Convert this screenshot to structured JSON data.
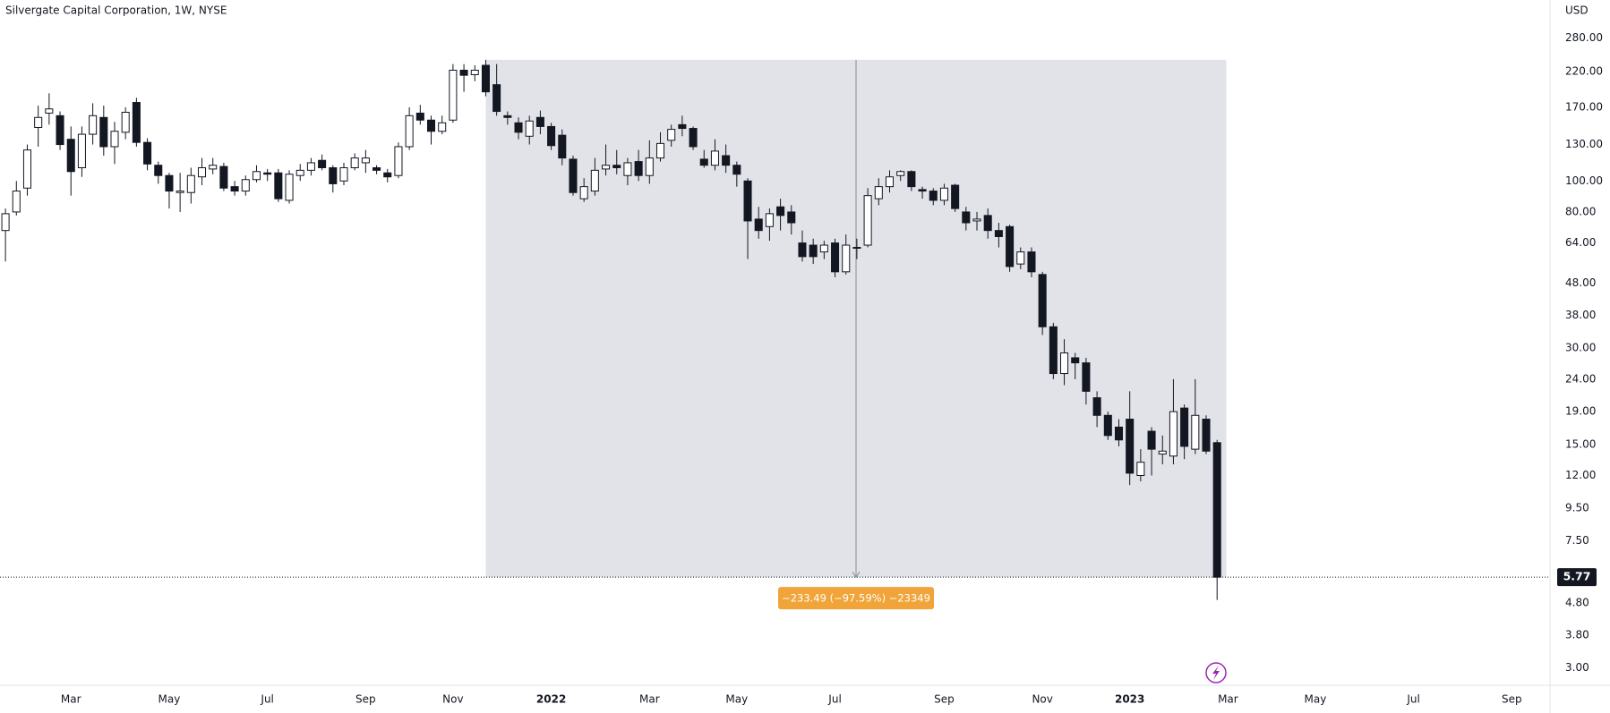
{
  "chart_data": {
    "type": "candlestick",
    "title": "Silvergate Capital Corporation, 1W, NYSE",
    "currency": "USD",
    "log_scale": true,
    "grid": false,
    "up_color": "#ffffff",
    "down_color": "#131722",
    "ylim": [
      2.65,
      368
    ],
    "yticks": [
      {
        "value": 280,
        "label": "280.00"
      },
      {
        "value": 220,
        "label": "220.00"
      },
      {
        "value": 170,
        "label": "170.00"
      },
      {
        "value": 130,
        "label": "130.00"
      },
      {
        "value": 100,
        "label": "100.00"
      },
      {
        "value": 80,
        "label": "80.00"
      },
      {
        "value": 64,
        "label": "64.00"
      },
      {
        "value": 48,
        "label": "48.00"
      },
      {
        "value": 38,
        "label": "38.00"
      },
      {
        "value": 30,
        "label": "30.00"
      },
      {
        "value": 24,
        "label": "24.00"
      },
      {
        "value": 19,
        "label": "19.00"
      },
      {
        "value": 15,
        "label": "15.00"
      },
      {
        "value": 12,
        "label": "12.00"
      },
      {
        "value": 9.5,
        "label": "9.50"
      },
      {
        "value": 7.5,
        "label": "7.50"
      },
      {
        "value": 4.8,
        "label": "4.80"
      },
      {
        "value": 3.8,
        "label": "3.80"
      },
      {
        "value": 3,
        "label": "3.00"
      }
    ],
    "categories": [
      null,
      null,
      null,
      null,
      null,
      null,
      "Mar",
      null,
      null,
      null,
      null,
      null,
      null,
      null,
      null,
      "May",
      null,
      null,
      null,
      null,
      null,
      null,
      null,
      null,
      "Jul",
      null,
      null,
      null,
      null,
      null,
      null,
      null,
      null,
      "Sep",
      null,
      null,
      null,
      null,
      null,
      null,
      null,
      "Nov",
      null,
      null,
      null,
      null,
      null,
      null,
      null,
      null,
      "2022",
      null,
      null,
      null,
      null,
      null,
      null,
      null,
      null,
      "Mar",
      null,
      null,
      null,
      null,
      null,
      null,
      null,
      "May",
      null,
      null,
      null,
      null,
      null,
      null,
      null,
      null,
      "Jul",
      null,
      null,
      null,
      null,
      null,
      null,
      null,
      null,
      null,
      "Sep",
      null,
      null,
      null,
      null,
      null,
      null,
      null,
      null,
      "Nov",
      null,
      null,
      null,
      null,
      null,
      null,
      null,
      "2023",
      null,
      null,
      null,
      null,
      null,
      null,
      null,
      null,
      "Mar",
      null,
      null,
      null,
      null,
      null,
      null,
      null,
      "May",
      null,
      null,
      null,
      null,
      null,
      null,
      null,
      null,
      "Jul",
      null,
      null,
      null,
      null,
      null,
      null,
      null,
      null,
      "Sep",
      null,
      null,
      null
    ],
    "open": [
      70,
      80,
      95,
      147,
      163,
      160,
      135,
      110,
      140,
      158,
      128,
      142,
      176,
      132,
      112,
      104,
      92,
      92,
      103,
      109,
      111,
      96,
      93,
      101,
      106,
      106,
      87,
      104,
      108,
      116,
      110,
      100,
      110,
      114,
      110,
      106,
      104,
      128,
      163,
      155,
      143,
      155,
      222,
      215,
      230,
      200,
      160,
      152,
      138,
      158,
      148,
      139,
      117,
      88,
      93,
      109,
      112,
      104,
      115,
      104,
      118,
      134,
      150,
      146,
      117,
      112,
      120,
      112,
      100,
      76,
      72,
      83,
      80,
      64,
      63,
      60,
      64,
      52,
      62,
      63,
      88,
      96,
      104,
      107,
      94,
      93,
      87,
      97,
      80,
      75,
      78,
      70,
      72,
      55,
      60,
      51,
      35,
      25,
      28,
      27,
      21,
      18.5,
      17,
      18,
      12,
      16.5,
      14,
      13.8,
      19.5,
      14.5,
      18,
      15.2,
      null,
      null,
      null,
      null,
      null,
      null,
      null,
      null,
      null,
      null,
      null,
      null,
      null,
      null,
      null,
      null,
      null,
      null,
      null,
      null,
      null,
      null,
      null,
      null,
      null,
      null,
      null,
      null,
      null,
      null
    ],
    "high": [
      82,
      100,
      130,
      172,
      188,
      165,
      148,
      148,
      175,
      172,
      153,
      170,
      182,
      136,
      115,
      106,
      106,
      110,
      118,
      118,
      114,
      100,
      104,
      112,
      109,
      109,
      108,
      113,
      118,
      121,
      112,
      114,
      122,
      125,
      112,
      109,
      132,
      170,
      173,
      160,
      160,
      232,
      232,
      230,
      239.26,
      232,
      165,
      158,
      160,
      166,
      152,
      145,
      120,
      102,
      118,
      130,
      125,
      118,
      125,
      134,
      142,
      150,
      160,
      148,
      125,
      135,
      130,
      115,
      102,
      83,
      82,
      88,
      84,
      70,
      66,
      65,
      66,
      68,
      66,
      95,
      102,
      108,
      108,
      108,
      96,
      95,
      98,
      98,
      83,
      80,
      82,
      74,
      73,
      62,
      62,
      52,
      36,
      32,
      29,
      28,
      22,
      19,
      18,
      22,
      14.5,
      17,
      16,
      24,
      20,
      24,
      18.5,
      15.5,
      null,
      null,
      null,
      null,
      null,
      null,
      null,
      null,
      null,
      null,
      null,
      null,
      null,
      null,
      null,
      null,
      null,
      null,
      null,
      null,
      null,
      null,
      null,
      null,
      null,
      null,
      null,
      null,
      null,
      null
    ],
    "low": [
      56,
      78,
      90,
      128,
      150,
      125,
      90,
      103,
      130,
      120,
      113,
      135,
      128,
      108,
      98,
      82,
      80,
      85,
      97,
      105,
      93,
      90,
      90,
      99,
      100,
      86,
      85,
      100,
      104,
      108,
      92,
      97,
      108,
      106,
      105,
      99,
      102,
      125,
      150,
      130,
      140,
      152,
      190,
      205,
      184,
      160,
      150,
      135,
      130,
      140,
      125,
      112,
      90,
      86,
      90,
      104,
      105,
      97,
      100,
      98,
      115,
      128,
      138,
      125,
      110,
      108,
      106,
      96,
      57,
      66,
      65,
      70,
      68,
      56,
      55,
      57,
      50,
      51,
      57,
      62,
      84,
      92,
      100,
      93,
      88,
      84,
      84,
      80,
      70,
      70,
      66,
      62,
      52,
      53,
      50,
      33,
      24,
      23,
      24,
      20,
      17,
      15.5,
      14.8,
      11.2,
      11.5,
      12,
      13,
      13,
      13.5,
      14,
      14,
      4.9,
      null,
      null,
      null,
      null,
      null,
      null,
      null,
      null,
      null,
      null,
      null,
      null,
      null,
      null,
      null,
      null,
      null,
      null,
      null,
      null,
      null,
      null,
      null,
      null,
      null,
      null,
      null,
      null,
      null,
      null
    ],
    "close": [
      79,
      93,
      125,
      158,
      168,
      130,
      107,
      140,
      160,
      128,
      143,
      164,
      132,
      113,
      104,
      93,
      93,
      104,
      110,
      112,
      95,
      93,
      101,
      107,
      105,
      88,
      105,
      108,
      114,
      110,
      98,
      110,
      118,
      118,
      108,
      103,
      128,
      160,
      155,
      143,
      152,
      222,
      214,
      222,
      190,
      165,
      158,
      142,
      154,
      148,
      129,
      118,
      92,
      96,
      108,
      112,
      110,
      114,
      104,
      118,
      131,
      145,
      146,
      128,
      112,
      124,
      112,
      105,
      75,
      70,
      79,
      78,
      74,
      58,
      58,
      63,
      52,
      63,
      62,
      90,
      96,
      103,
      107,
      96,
      93,
      87,
      95,
      82,
      74,
      76,
      70,
      67,
      54,
      60,
      52,
      35,
      25,
      29,
      27,
      22,
      18.5,
      16,
      15.5,
      12.2,
      13.2,
      14.5,
      14.3,
      19,
      14.8,
      18.5,
      14.3,
      5.77,
      null,
      null,
      null,
      null,
      null,
      null,
      null,
      null,
      null,
      null,
      null,
      null,
      null,
      null,
      null,
      null,
      null,
      null,
      null,
      null,
      null,
      null,
      null,
      null,
      null,
      null,
      null,
      null,
      null,
      null
    ],
    "measure": {
      "label": "−233.49 (−97.59%) −23349",
      "color": "#dfe0e5",
      "label_color": "#f0a43a"
    }
  }
}
